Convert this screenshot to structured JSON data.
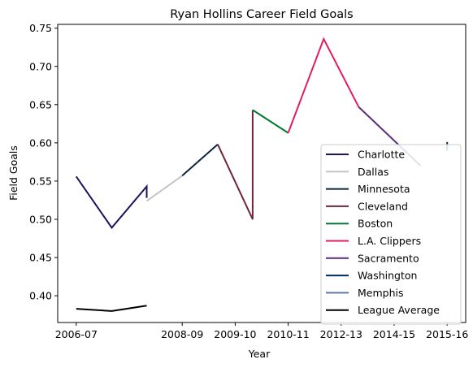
{
  "chart_data": {
    "type": "line",
    "title": "Ryan Hollins Career Field Goals",
    "xlabel": "Year",
    "ylabel": "Field Goals",
    "x_ticks": [
      "2006-07",
      "2008-09",
      "2009-10",
      "2010-11",
      "2012-13",
      "2014-15",
      "2015-16"
    ],
    "x_tick_positions": [
      0,
      2,
      3,
      4,
      5,
      6,
      7
    ],
    "xlim": [
      -0.35,
      7.35
    ],
    "ylim": [
      0.365,
      0.755
    ],
    "y_ticks": [
      0.4,
      0.45,
      0.5,
      0.55,
      0.6,
      0.65,
      0.7,
      0.75
    ],
    "y_tick_labels": [
      "0.40",
      "0.45",
      "0.50",
      "0.55",
      "0.60",
      "0.65",
      "0.70",
      "0.75"
    ],
    "grid": false,
    "legend_position": "lower-right",
    "series": [
      {
        "name": "Charlotte",
        "color": "#1d1160",
        "points": [
          [
            0,
            0.556
          ],
          [
            0.67,
            0.489
          ],
          [
            1.33,
            0.543
          ],
          [
            1.33,
            0.528
          ]
        ]
      },
      {
        "name": "Dallas",
        "color": "#c4c4c4",
        "points": [
          [
            1.33,
            0.524
          ],
          [
            2,
            0.557
          ]
        ]
      },
      {
        "name": "Minnesota",
        "color": "#0c2340",
        "points": [
          [
            2,
            0.557
          ],
          [
            2.67,
            0.598
          ]
        ]
      },
      {
        "name": "Cleveland",
        "color": "#6f263d",
        "points": [
          [
            2.67,
            0.598
          ],
          [
            3.33,
            0.5
          ],
          [
            3.33,
            0.643
          ]
        ]
      },
      {
        "name": "Boston",
        "color": "#007a33",
        "points": [
          [
            3.33,
            0.643
          ],
          [
            4,
            0.613
          ]
        ]
      },
      {
        "name": "L.A. Clippers",
        "color": "#e31d5b",
        "points": [
          [
            4,
            0.613
          ],
          [
            4.67,
            0.736
          ],
          [
            5.33,
            0.647
          ]
        ]
      },
      {
        "name": "Sacramento",
        "color": "#5a2d81",
        "points": [
          [
            5.33,
            0.647
          ],
          [
            6.5,
            0.57
          ]
        ]
      },
      {
        "name": "Washington",
        "color": "#002b5c",
        "points": [
          [
            7,
            0.601
          ],
          [
            7,
            0.59
          ]
        ]
      },
      {
        "name": "Memphis",
        "color": "#5d76a9",
        "points": []
      },
      {
        "name": "League Average",
        "color": "#000000",
        "points": [
          [
            0,
            0.383
          ],
          [
            0.67,
            0.38
          ],
          [
            1.33,
            0.387
          ]
        ]
      }
    ]
  }
}
